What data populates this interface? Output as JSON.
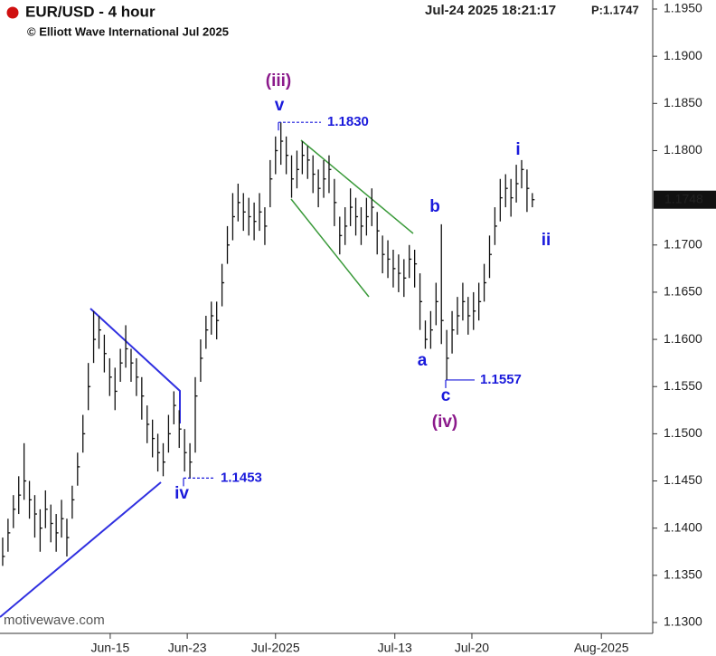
{
  "chart_data": {
    "type": "ohlc",
    "title": "EUR/USD - 4 hour",
    "subtitle": "© Elliott Wave International Jul 2025",
    "timestamp": "Jul-24 2025  18:21:17",
    "price_label": "P:1.1747",
    "watermark": "motivewave.com",
    "last": {
      "value": 1.1748,
      "label": "1.1748"
    },
    "color": "#111111",
    "ylim": [
      1.13,
      1.195
    ],
    "yticks": [
      {
        "value": 1.195,
        "label": "1.1950"
      },
      {
        "value": 1.19,
        "label": "1.1900"
      },
      {
        "value": 1.185,
        "label": "1.1850"
      },
      {
        "value": 1.18,
        "label": "1.1800"
      },
      {
        "value": 1.17,
        "label": "1.1700"
      },
      {
        "value": 1.165,
        "label": "1.1650"
      },
      {
        "value": 1.16,
        "label": "1.1600"
      },
      {
        "value": 1.155,
        "label": "1.1550"
      },
      {
        "value": 1.15,
        "label": "1.1500"
      },
      {
        "value": 1.145,
        "label": "1.1450"
      },
      {
        "value": 1.14,
        "label": "1.1400"
      },
      {
        "value": 1.135,
        "label": "1.1350"
      },
      {
        "value": 1.13,
        "label": "1.1300"
      }
    ],
    "xlim": [
      0,
      122
    ],
    "xticks": [
      {
        "value": 20.6,
        "label": "Jun-15"
      },
      {
        "value": 35,
        "label": "Jun-23"
      },
      {
        "value": 51.5,
        "label": "Jul-2025"
      },
      {
        "value": 73.8,
        "label": "Jul-13"
      },
      {
        "value": 88.2,
        "label": "Jul-20"
      },
      {
        "value": 112.4,
        "label": "Aug-2025"
      }
    ],
    "levels": [
      {
        "value": 1.183,
        "label": "1.1830"
      },
      {
        "value": 1.1557,
        "label": "1.1557"
      },
      {
        "value": 1.1453,
        "label": "1.1453"
      }
    ],
    "wave_labels": [
      {
        "text": "(iii)",
        "color": "#8b1a8b"
      },
      {
        "text": "v",
        "color": "#1a1adb"
      },
      {
        "text": "b",
        "color": "#1a1adb"
      },
      {
        "text": "a",
        "color": "#1a1adb"
      },
      {
        "text": "c",
        "color": "#1a1adb"
      },
      {
        "text": "(iv)",
        "color": "#8b1a8b"
      },
      {
        "text": "i",
        "color": "#1a1adb"
      },
      {
        "text": "ii",
        "color": "#1a1adb"
      },
      {
        "text": "iv",
        "color": "#1a1adb"
      }
    ],
    "values": [
      1.137,
      1.1395,
      1.142,
      1.1435,
      1.145,
      1.143,
      1.1415,
      1.14,
      1.142,
      1.1405,
      1.1395,
      1.141,
      1.139,
      1.143,
      1.1465,
      1.15,
      1.155,
      1.16,
      1.161,
      1.1585,
      1.156,
      1.1545,
      1.1575,
      1.159,
      1.1575,
      1.156,
      1.154,
      1.151,
      1.1495,
      1.148,
      1.147,
      1.15,
      1.153,
      1.1505,
      1.148,
      1.147,
      1.154,
      1.158,
      1.161,
      1.1625,
      1.162,
      1.166,
      1.17,
      1.173,
      1.1745,
      1.1735,
      1.173,
      1.1725,
      1.1735,
      1.172,
      1.177,
      1.18,
      1.181,
      1.1795,
      1.177,
      1.178,
      1.1795,
      1.179,
      1.1775,
      1.176,
      1.177,
      1.178,
      1.1745,
      1.171,
      1.172,
      1.174,
      1.173,
      1.172,
      1.173,
      1.174,
      1.1715,
      1.169,
      1.1685,
      1.1675,
      1.167,
      1.1665,
      1.1685,
      1.168,
      1.164,
      1.16,
      1.161,
      1.164,
      1.162,
      1.158,
      1.161,
      1.1625,
      1.164,
      1.1625,
      1.163,
      1.164,
      1.166,
      1.169,
      1.172,
      1.175,
      1.176,
      1.175,
      1.1765,
      1.178,
      1.176,
      1.1748
    ],
    "high": [
      1.139,
      1.141,
      1.1435,
      1.1455,
      1.149,
      1.145,
      1.1435,
      1.142,
      1.144,
      1.1425,
      1.1415,
      1.143,
      1.141,
      1.1445,
      1.148,
      1.152,
      1.1575,
      1.163,
      1.1625,
      1.1605,
      1.158,
      1.157,
      1.159,
      1.1615,
      1.159,
      1.158,
      1.156,
      1.153,
      1.1515,
      1.15,
      1.149,
      1.152,
      1.1545,
      1.1525,
      1.1505,
      1.149,
      1.156,
      1.16,
      1.1625,
      1.164,
      1.164,
      1.168,
      1.172,
      1.1755,
      1.1765,
      1.1755,
      1.175,
      1.1745,
      1.1755,
      1.174,
      1.179,
      1.1815,
      1.183,
      1.1815,
      1.1795,
      1.18,
      1.181,
      1.1805,
      1.1795,
      1.178,
      1.179,
      1.1795,
      1.177,
      1.173,
      1.174,
      1.176,
      1.175,
      1.174,
      1.175,
      1.176,
      1.1735,
      1.171,
      1.1705,
      1.1695,
      1.169,
      1.1685,
      1.17,
      1.1695,
      1.167,
      1.162,
      1.163,
      1.166,
      1.1722,
      1.161,
      1.163,
      1.1645,
      1.166,
      1.1645,
      1.165,
      1.166,
      1.168,
      1.171,
      1.174,
      1.177,
      1.1775,
      1.177,
      1.1785,
      1.179,
      1.178,
      1.1755
    ],
    "low": [
      1.136,
      1.1375,
      1.14,
      1.1415,
      1.143,
      1.141,
      1.139,
      1.1375,
      1.14,
      1.1385,
      1.1375,
      1.139,
      1.137,
      1.141,
      1.1445,
      1.148,
      1.1525,
      1.1575,
      1.159,
      1.1565,
      1.154,
      1.1525,
      1.1555,
      1.157,
      1.1555,
      1.154,
      1.1515,
      1.149,
      1.1475,
      1.146,
      1.1455,
      1.148,
      1.151,
      1.1485,
      1.146,
      1.1453,
      1.148,
      1.1555,
      1.159,
      1.1605,
      1.16,
      1.1635,
      1.168,
      1.1705,
      1.1725,
      1.1715,
      1.171,
      1.1705,
      1.1715,
      1.17,
      1.174,
      1.1775,
      1.1785,
      1.1775,
      1.175,
      1.176,
      1.1775,
      1.177,
      1.1755,
      1.174,
      1.175,
      1.1755,
      1.172,
      1.169,
      1.17,
      1.172,
      1.171,
      1.17,
      1.171,
      1.172,
      1.169,
      1.167,
      1.1665,
      1.1655,
      1.165,
      1.1645,
      1.1665,
      1.1655,
      1.161,
      1.159,
      1.159,
      1.1615,
      1.1595,
      1.1557,
      1.1585,
      1.1605,
      1.162,
      1.1605,
      1.161,
      1.162,
      1.164,
      1.1665,
      1.17,
      1.1725,
      1.174,
      1.173,
      1.1745,
      1.176,
      1.1735,
      1.174
    ]
  }
}
